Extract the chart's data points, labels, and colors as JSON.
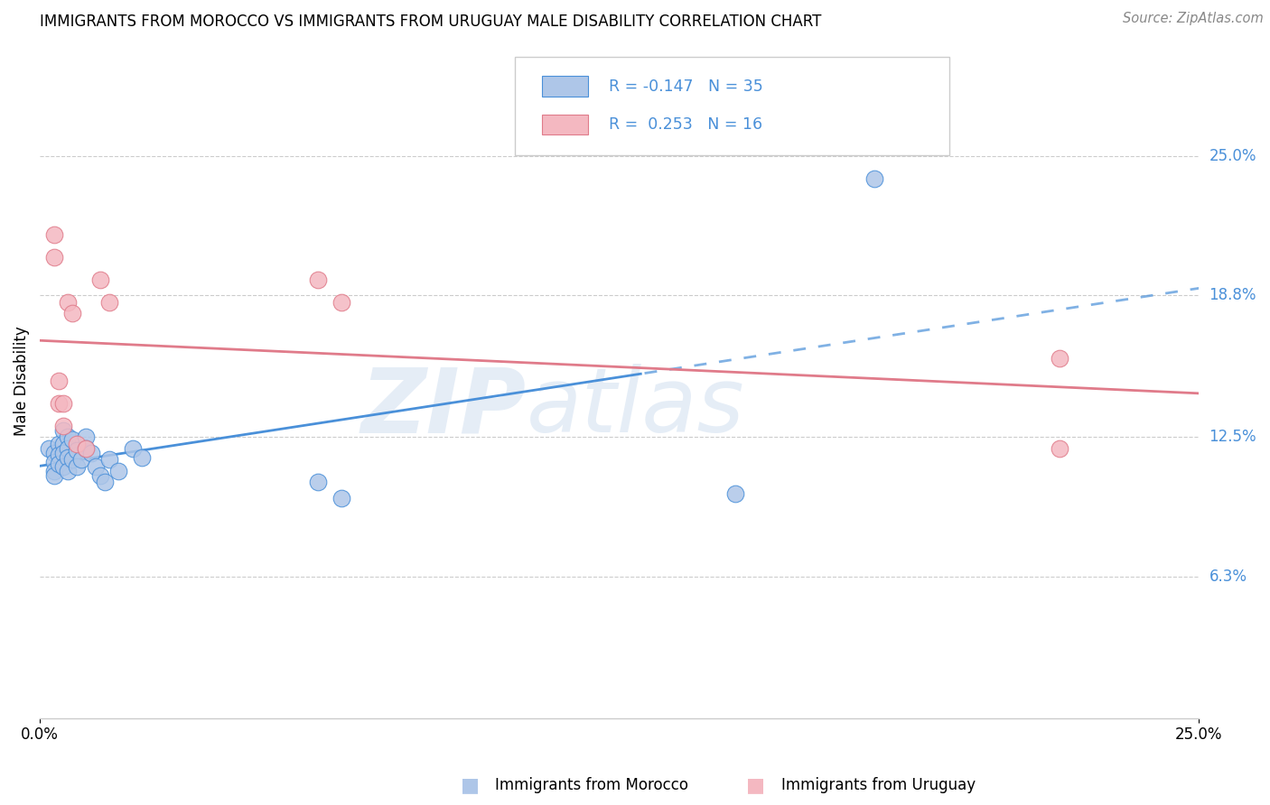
{
  "title": "IMMIGRANTS FROM MOROCCO VS IMMIGRANTS FROM URUGUAY MALE DISABILITY CORRELATION CHART",
  "source": "Source: ZipAtlas.com",
  "ylabel": "Male Disability",
  "xlim": [
    0.0,
    0.25
  ],
  "ylim": [
    0.0,
    0.3
  ],
  "yticks": [
    0.063,
    0.125,
    0.188,
    0.25
  ],
  "ytick_labels": [
    "6.3%",
    "12.5%",
    "18.8%",
    "25.0%"
  ],
  "morocco_R": -0.147,
  "morocco_N": 35,
  "uruguay_R": 0.253,
  "uruguay_N": 16,
  "morocco_color": "#aec6e8",
  "uruguay_color": "#f4b8c1",
  "morocco_line_color": "#4a90d9",
  "uruguay_line_color": "#e07b8a",
  "watermark_zip": "ZIP",
  "watermark_atlas": "atlas",
  "background_color": "#ffffff",
  "grid_color": "#cccccc",
  "right_label_color": "#4a90d9",
  "morocco_x": [
    0.002,
    0.003,
    0.003,
    0.003,
    0.003,
    0.004,
    0.004,
    0.004,
    0.005,
    0.005,
    0.005,
    0.005,
    0.006,
    0.006,
    0.006,
    0.006,
    0.007,
    0.007,
    0.008,
    0.008,
    0.009,
    0.01,
    0.01,
    0.011,
    0.012,
    0.013,
    0.014,
    0.015,
    0.017,
    0.02,
    0.022,
    0.06,
    0.065,
    0.15,
    0.18
  ],
  "morocco_y": [
    0.12,
    0.118,
    0.114,
    0.11,
    0.108,
    0.122,
    0.117,
    0.113,
    0.128,
    0.122,
    0.118,
    0.112,
    0.125,
    0.12,
    0.116,
    0.11,
    0.124,
    0.115,
    0.119,
    0.112,
    0.115,
    0.125,
    0.12,
    0.118,
    0.112,
    0.108,
    0.105,
    0.115,
    0.11,
    0.12,
    0.116,
    0.105,
    0.098,
    0.1,
    0.24
  ],
  "uruguay_x": [
    0.003,
    0.003,
    0.004,
    0.004,
    0.005,
    0.005,
    0.006,
    0.007,
    0.008,
    0.01,
    0.013,
    0.015,
    0.06,
    0.065,
    0.22,
    0.22
  ],
  "uruguay_y": [
    0.215,
    0.205,
    0.15,
    0.14,
    0.14,
    0.13,
    0.185,
    0.18,
    0.122,
    0.12,
    0.195,
    0.185,
    0.195,
    0.185,
    0.16,
    0.12
  ]
}
